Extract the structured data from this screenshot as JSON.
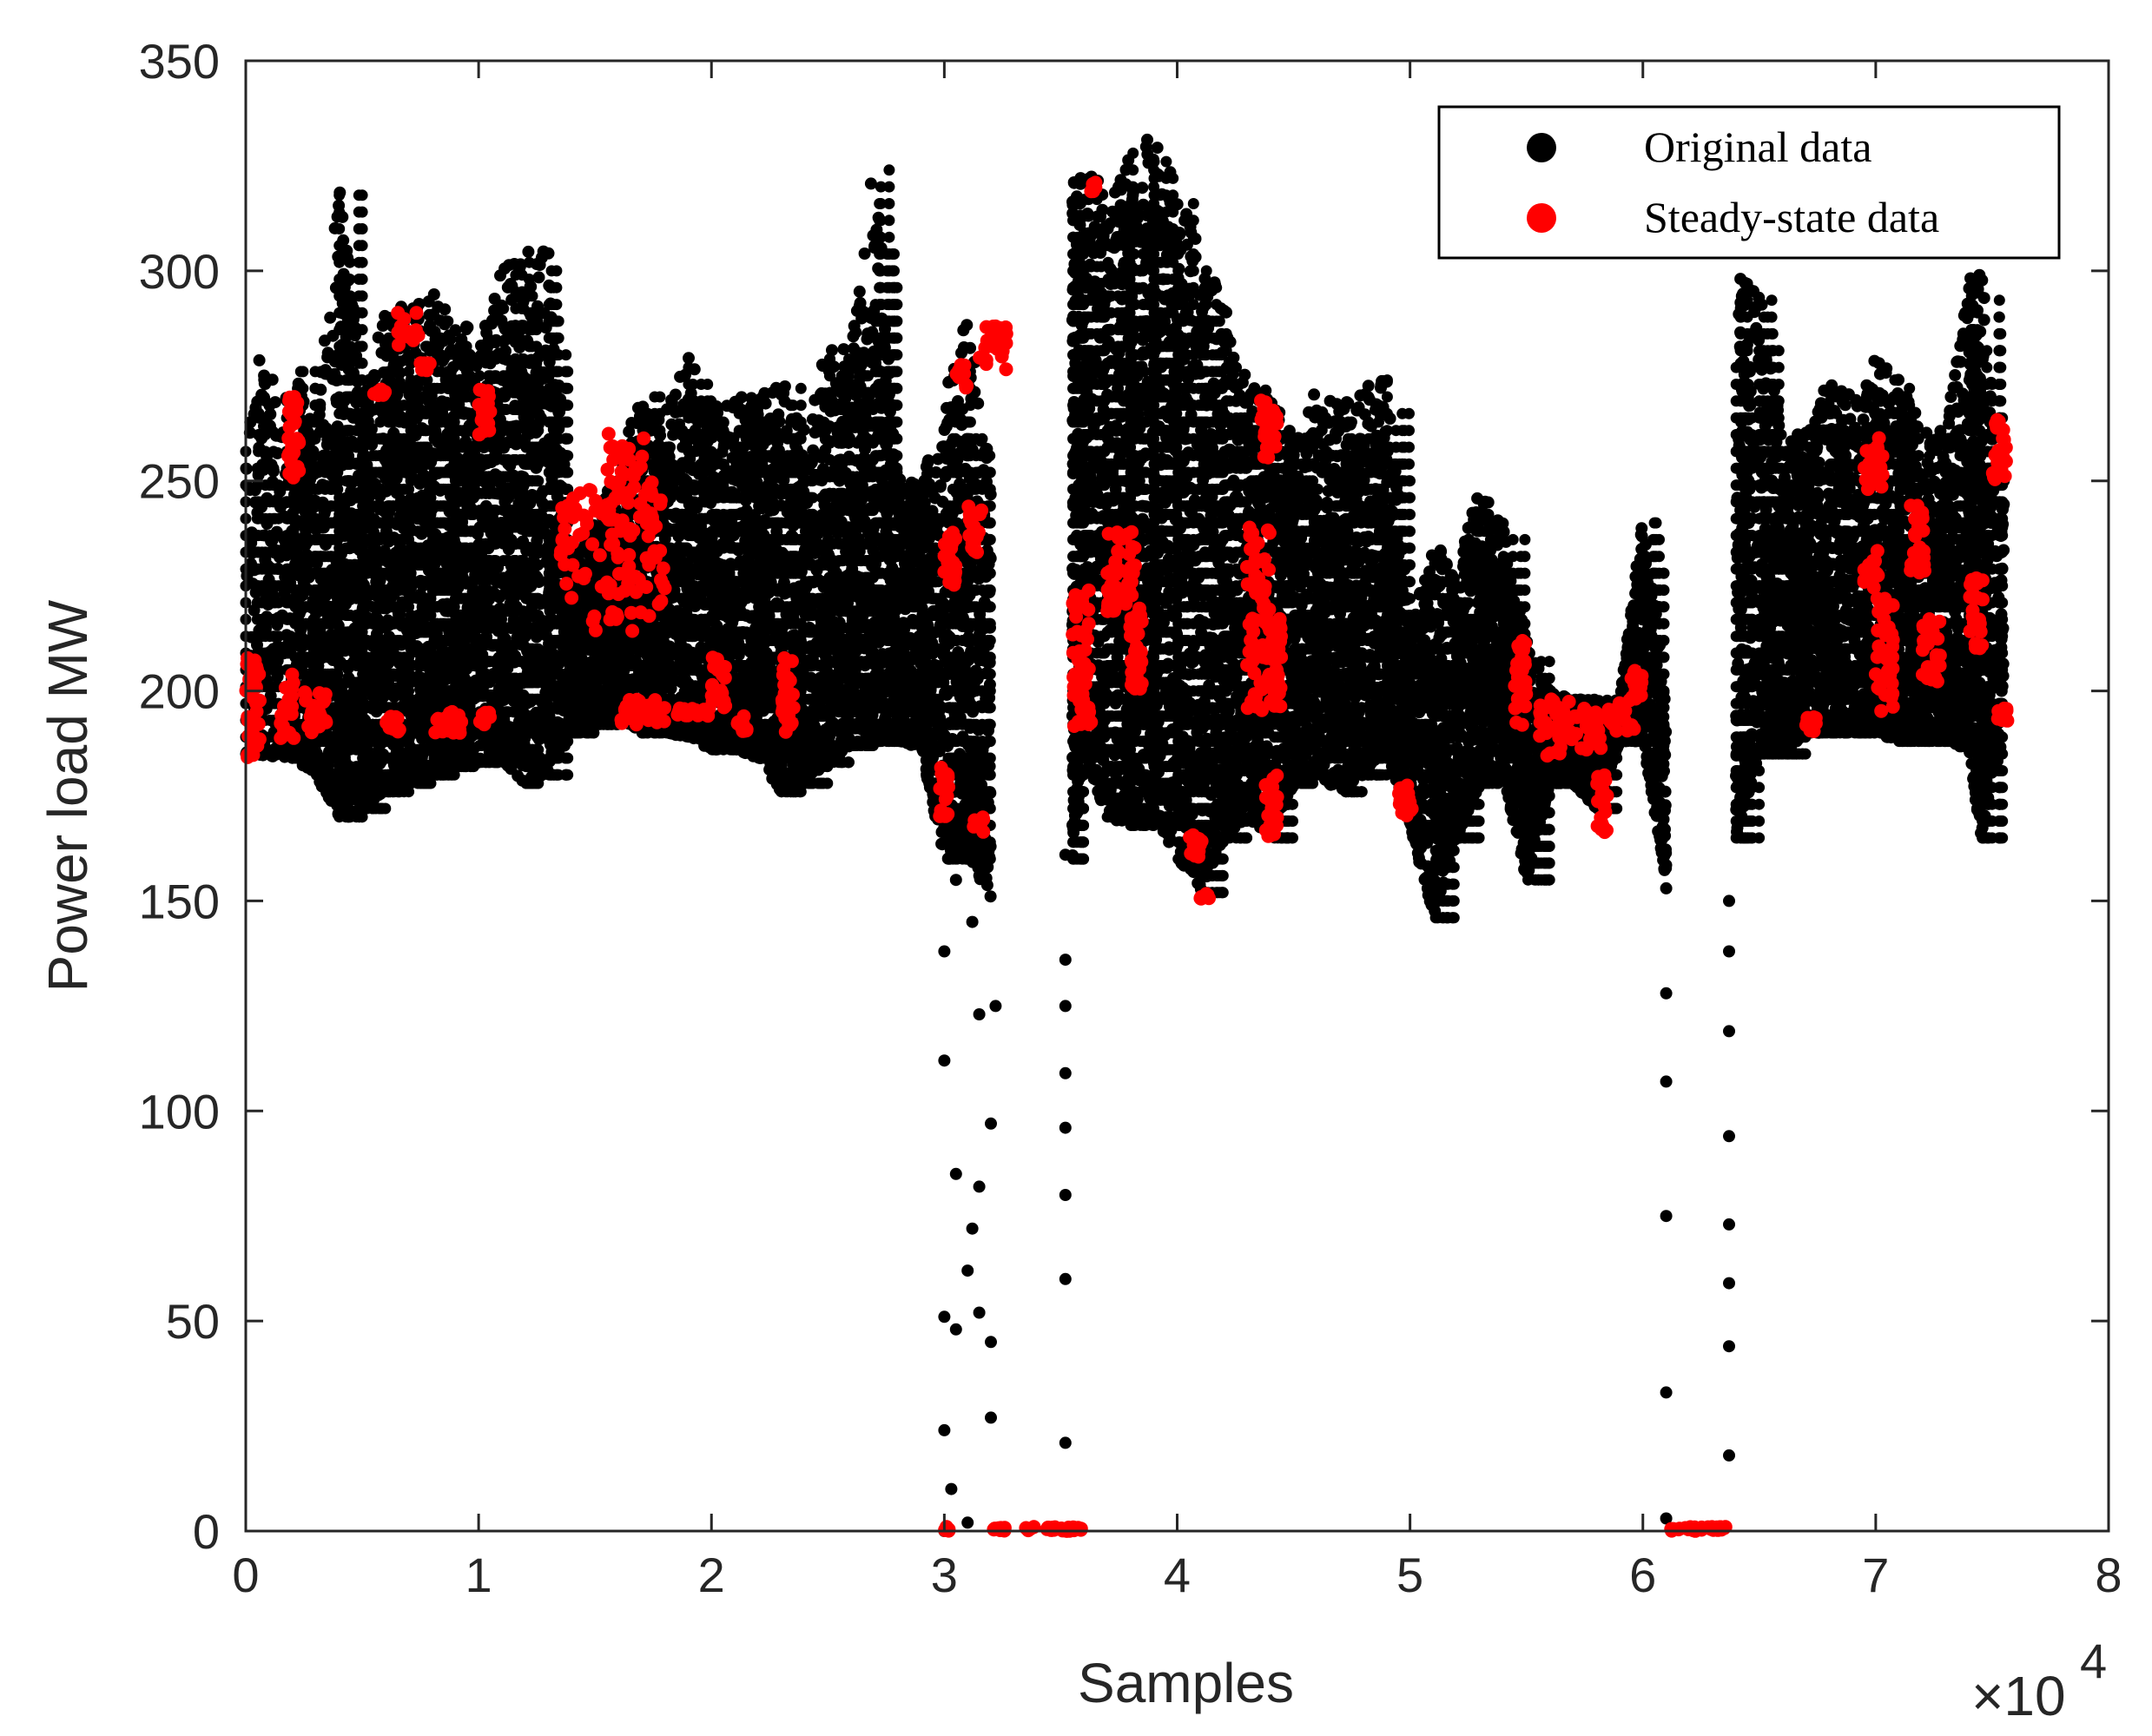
{
  "chart_data": {
    "type": "scatter",
    "title": "",
    "xlabel": "Samples",
    "ylabel": "Power load MW",
    "x_exponent_label": "×10",
    "x_exponent_power": "4",
    "xlim": [
      0,
      8
    ],
    "ylim": [
      0,
      350
    ],
    "x_ticks": [
      "0",
      "1",
      "2",
      "3",
      "4",
      "5",
      "6",
      "7",
      "8"
    ],
    "y_ticks": [
      "0",
      "50",
      "100",
      "150",
      "200",
      "250",
      "300",
      "350"
    ],
    "x_unit_note": "x values in units of 10^4 samples",
    "grid": false,
    "legend_position": "top-right",
    "series": [
      {
        "name": "Original data",
        "color": "#000000",
        "envelope": [
          [
            0.0,
            185,
            280
          ],
          [
            0.2,
            184,
            278
          ],
          [
            0.3,
            180,
            262
          ],
          [
            0.4,
            170,
            322
          ],
          [
            0.5,
            172,
            272
          ],
          [
            0.6,
            176,
            292
          ],
          [
            0.7,
            178,
            292
          ],
          [
            0.8,
            180,
            296
          ],
          [
            0.9,
            182,
            292
          ],
          [
            1.0,
            183,
            285
          ],
          [
            1.1,
            183,
            300
          ],
          [
            1.2,
            178,
            307
          ],
          [
            1.3,
            180,
            305
          ],
          [
            1.4,
            190,
            235
          ],
          [
            1.5,
            192,
            240
          ],
          [
            1.6,
            194,
            255
          ],
          [
            1.7,
            190,
            271
          ],
          [
            1.8,
            190,
            266
          ],
          [
            1.9,
            189,
            281
          ],
          [
            2.0,
            186,
            268
          ],
          [
            2.1,
            186,
            270
          ],
          [
            2.2,
            184,
            270
          ],
          [
            2.3,
            176,
            275
          ],
          [
            2.4,
            178,
            262
          ],
          [
            2.5,
            183,
            283
          ],
          [
            2.6,
            187,
            282
          ],
          [
            2.7,
            188,
            328
          ],
          [
            2.8,
            188,
            252
          ],
          [
            2.9,
            186,
            250
          ],
          [
            3.0,
            160,
            270
          ],
          [
            3.1,
            160,
            290
          ],
          [
            3.2,
            150,
            255
          ],
          [
            3.55,
            160,
            322
          ],
          [
            3.6,
            185,
            326
          ],
          [
            3.7,
            170,
            320
          ],
          [
            3.8,
            168,
            330
          ],
          [
            3.9,
            170,
            332
          ],
          [
            4.0,
            160,
            320
          ],
          [
            4.1,
            152,
            306
          ],
          [
            4.2,
            165,
            292
          ],
          [
            4.3,
            170,
            275
          ],
          [
            4.4,
            165,
            272
          ],
          [
            4.5,
            178,
            262
          ],
          [
            4.6,
            180,
            272
          ],
          [
            4.7,
            176,
            268
          ],
          [
            4.8,
            180,
            272
          ],
          [
            4.9,
            186,
            275
          ],
          [
            5.0,
            168,
            215
          ],
          [
            5.1,
            146,
            236
          ],
          [
            5.2,
            165,
            228
          ],
          [
            5.3,
            178,
            250
          ],
          [
            5.4,
            180,
            240
          ],
          [
            5.5,
            155,
            212
          ],
          [
            5.6,
            178,
            200
          ],
          [
            5.7,
            178,
            198
          ],
          [
            5.8,
            172,
            198
          ],
          [
            5.9,
            188,
            198
          ],
          [
            6.0,
            188,
            242
          ],
          [
            6.1,
            155,
            200
          ],
          [
            6.4,
            165,
            300
          ],
          [
            6.5,
            185,
            296
          ],
          [
            6.6,
            185,
            260
          ],
          [
            6.7,
            190,
            262
          ],
          [
            6.8,
            190,
            275
          ],
          [
            6.9,
            190,
            270
          ],
          [
            7.0,
            190,
            280
          ],
          [
            7.1,
            188,
            276
          ],
          [
            7.2,
            188,
            262
          ],
          [
            7.3,
            188,
            262
          ],
          [
            7.4,
            186,
            298
          ],
          [
            7.45,
            165,
            302
          ],
          [
            7.55,
            190,
            250
          ]
        ],
        "sparse": [
          [
            3.0,
            0.6,
            0
          ],
          [
            3.0,
            0.6,
            24
          ],
          [
            3.0,
            0.6,
            51
          ],
          [
            3.0,
            0.6,
            112
          ],
          [
            3.0,
            0.6,
            138
          ],
          [
            3.03,
            0.6,
            10
          ],
          [
            3.05,
            0.6,
            85
          ],
          [
            3.05,
            0.6,
            48
          ],
          [
            3.1,
            0.6,
            2
          ],
          [
            3.1,
            0.6,
            62
          ],
          [
            3.12,
            0.6,
            72
          ],
          [
            3.12,
            0.6,
            145
          ],
          [
            3.15,
            0.6,
            82
          ],
          [
            3.15,
            0.6,
            52
          ],
          [
            3.15,
            0.6,
            123
          ],
          [
            3.2,
            0.6,
            97
          ],
          [
            3.2,
            0.6,
            45
          ],
          [
            3.2,
            0.6,
            27
          ],
          [
            3.22,
            0.6,
            125
          ],
          [
            3.05,
            0.6,
            155
          ],
          [
            3.52,
            0.6,
            21
          ],
          [
            3.52,
            0.6,
            60
          ],
          [
            3.52,
            0.6,
            80
          ],
          [
            3.52,
            0.6,
            96
          ],
          [
            3.52,
            0.6,
            109
          ],
          [
            3.52,
            0.6,
            125
          ],
          [
            3.52,
            0.6,
            136
          ],
          [
            3.52,
            0.6,
            161
          ],
          [
            6.1,
            0.6,
            33
          ],
          [
            6.1,
            0.6,
            75
          ],
          [
            6.1,
            0.6,
            107
          ],
          [
            6.1,
            0.6,
            128
          ],
          [
            6.1,
            0.6,
            153
          ],
          [
            6.1,
            0.6,
            3
          ],
          [
            6.37,
            0.6,
            18
          ],
          [
            6.37,
            0.6,
            44
          ],
          [
            6.37,
            0.6,
            59
          ],
          [
            6.37,
            0.6,
            73
          ],
          [
            6.37,
            0.6,
            94
          ],
          [
            6.37,
            0.6,
            119
          ],
          [
            6.37,
            0.6,
            138
          ],
          [
            6.37,
            0.6,
            150
          ]
        ]
      },
      {
        "name": "Steady-state data",
        "color": "#ff0000",
        "clusters": [
          [
            0.0,
            0.06,
            184,
            208
          ],
          [
            0.15,
            0.06,
            188,
            204
          ],
          [
            0.18,
            0.05,
            250,
            270
          ],
          [
            0.25,
            0.1,
            190,
            200
          ],
          [
            0.55,
            0.05,
            270,
            272
          ],
          [
            0.6,
            0.08,
            190,
            194
          ],
          [
            0.65,
            0.1,
            282,
            290
          ],
          [
            0.75,
            0.04,
            276,
            278
          ],
          [
            0.8,
            0.15,
            190,
            195
          ],
          [
            1.0,
            0.05,
            258,
            272
          ],
          [
            1.0,
            0.05,
            192,
            195
          ],
          [
            1.35,
            0.45,
            214,
            248
          ],
          [
            1.55,
            0.2,
            238,
            262
          ],
          [
            1.6,
            0.2,
            192,
            198
          ],
          [
            1.85,
            0.15,
            194,
            196
          ],
          [
            2.0,
            0.06,
            196,
            208
          ],
          [
            2.1,
            0.06,
            190,
            194
          ],
          [
            2.3,
            0.06,
            190,
            208
          ],
          [
            2.98,
            0.05,
            170,
            182
          ],
          [
            3.0,
            0.05,
            225,
            238
          ],
          [
            3.05,
            0.05,
            272,
            278
          ],
          [
            3.1,
            0.06,
            232,
            244
          ],
          [
            3.12,
            0.05,
            166,
            170
          ],
          [
            3.15,
            0.12,
            276,
            287
          ],
          [
            3.0,
            0.02,
            0,
            1
          ],
          [
            3.2,
            0.06,
            0,
            1
          ],
          [
            3.35,
            0.25,
            0,
            1
          ],
          [
            3.55,
            0.08,
            190,
            224
          ],
          [
            3.63,
            0.02,
            318,
            321
          ],
          [
            3.7,
            0.12,
            214,
            238
          ],
          [
            3.8,
            0.05,
            200,
            220
          ],
          [
            4.05,
            0.06,
            160,
            166
          ],
          [
            4.1,
            0.04,
            150,
            152
          ],
          [
            4.3,
            0.1,
            195,
            240
          ],
          [
            4.4,
            0.05,
            196,
            218
          ],
          [
            4.35,
            0.08,
            255,
            270
          ],
          [
            4.38,
            0.05,
            165,
            180
          ],
          [
            4.95,
            0.06,
            170,
            178
          ],
          [
            5.45,
            0.05,
            190,
            212
          ],
          [
            5.55,
            0.15,
            184,
            198
          ],
          [
            5.7,
            0.12,
            186,
            196
          ],
          [
            5.8,
            0.05,
            166,
            180
          ],
          [
            5.85,
            0.12,
            190,
            198
          ],
          [
            5.95,
            0.05,
            198,
            205
          ],
          [
            6.12,
            0.25,
            0,
            1
          ],
          [
            6.7,
            0.05,
            190,
            194
          ],
          [
            6.95,
            0.08,
            248,
            262
          ],
          [
            6.95,
            0.06,
            224,
            234
          ],
          [
            7.0,
            0.08,
            195,
            222
          ],
          [
            7.15,
            0.06,
            228,
            245
          ],
          [
            7.2,
            0.08,
            202,
            218
          ],
          [
            7.4,
            0.06,
            210,
            228
          ],
          [
            7.5,
            0.06,
            250,
            265
          ],
          [
            7.52,
            0.05,
            192,
            196
          ]
        ]
      }
    ]
  }
}
